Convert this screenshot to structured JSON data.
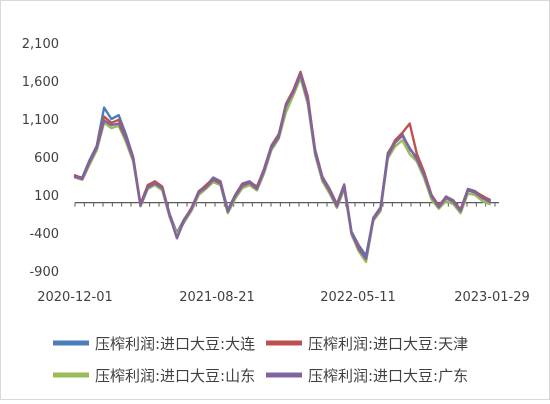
{
  "chart_data": {
    "type": "line",
    "title": "",
    "xlabel": "",
    "ylabel": "",
    "ylim": [
      -900,
      2100
    ],
    "y_ticks": [
      2100,
      1600,
      1100,
      600,
      100,
      -400,
      -900
    ],
    "y_tick_labels": [
      "2,100",
      "1,600",
      "1,100",
      "600",
      "100",
      "-400",
      "-900"
    ],
    "x_tick_labels": [
      "2020-12-01",
      "2021-08-21",
      "2022-05-11",
      "2023-01-29"
    ],
    "x_range": [
      "2020-12-01",
      "2023-01-29"
    ],
    "grid": false,
    "zero_line": true,
    "legend_position": "bottom",
    "x": [
      "2020-12-01",
      "2020-12-15",
      "2020-12-29",
      "2021-01-12",
      "2021-01-26",
      "2021-02-09",
      "2021-02-23",
      "2021-03-09",
      "2021-03-23",
      "2021-04-06",
      "2021-04-20",
      "2021-05-04",
      "2021-05-18",
      "2021-06-01",
      "2021-06-15",
      "2021-06-29",
      "2021-07-13",
      "2021-07-27",
      "2021-08-10",
      "2021-08-24",
      "2021-09-07",
      "2021-09-21",
      "2021-10-05",
      "2021-10-19",
      "2021-11-02",
      "2021-11-16",
      "2021-11-30",
      "2021-12-14",
      "2021-12-28",
      "2022-01-11",
      "2022-01-25",
      "2022-02-08",
      "2022-02-22",
      "2022-03-08",
      "2022-03-22",
      "2022-04-05",
      "2022-04-19",
      "2022-05-03",
      "2022-05-17",
      "2022-05-31",
      "2022-06-14",
      "2022-06-28",
      "2022-07-12",
      "2022-07-26",
      "2022-08-09",
      "2022-08-23",
      "2022-09-06",
      "2022-09-20",
      "2022-10-04",
      "2022-10-18",
      "2022-11-01",
      "2022-11-15",
      "2022-11-29",
      "2022-12-13",
      "2022-12-27",
      "2023-01-10",
      "2023-01-24",
      "2023-02-07"
    ],
    "series": [
      {
        "name": "压榨利润:进口大豆:大连",
        "color": "#4a7ebb",
        "values": [
          350,
          330,
          560,
          750,
          1250,
          1100,
          1150,
          900,
          600,
          -30,
          220,
          270,
          200,
          -150,
          -400,
          -220,
          -80,
          150,
          220,
          330,
          280,
          -100,
          100,
          250,
          280,
          200,
          450,
          750,
          900,
          1250,
          1470,
          1700,
          1350,
          700,
          340,
          180,
          -20,
          240,
          -380,
          -560,
          -700,
          -200,
          -60,
          650,
          800,
          900,
          700,
          600,
          380,
          100,
          -50,
          80,
          30,
          -100,
          180,
          150,
          80,
          40
        ]
      },
      {
        "name": "压榨利润:进口大豆:天津",
        "color": "#c0504d",
        "values": [
          360,
          320,
          540,
          740,
          1130,
          1050,
          1090,
          860,
          590,
          -20,
          230,
          280,
          210,
          -160,
          -420,
          -230,
          -70,
          140,
          230,
          310,
          270,
          -110,
          90,
          240,
          270,
          210,
          440,
          740,
          890,
          1300,
          1480,
          1720,
          1400,
          680,
          330,
          170,
          -30,
          230,
          -400,
          -580,
          -760,
          -210,
          -70,
          630,
          820,
          920,
          1040,
          640,
          400,
          100,
          -40,
          70,
          20,
          -90,
          170,
          140,
          90,
          30
        ]
      },
      {
        "name": "压榨利润:进口大豆:山东",
        "color": "#9bbb59",
        "values": [
          330,
          300,
          500,
          690,
          1050,
          980,
          1010,
          800,
          540,
          -50,
          180,
          230,
          160,
          -190,
          -420,
          -260,
          -110,
          100,
          180,
          270,
          230,
          -140,
          50,
          190,
          230,
          160,
          390,
          690,
          840,
          1190,
          1410,
          1640,
          1300,
          630,
          280,
          120,
          -70,
          180,
          -420,
          -640,
          -780,
          -240,
          -110,
          580,
          740,
          820,
          640,
          540,
          320,
          40,
          -80,
          20,
          -20,
          -140,
          120,
          100,
          20,
          -20
        ]
      },
      {
        "name": "压榨利润:进口大豆:广东",
        "color": "#8064a2",
        "values": [
          340,
          310,
          530,
          720,
          1080,
          1020,
          1040,
          840,
          570,
          -40,
          200,
          250,
          190,
          -170,
          -470,
          -240,
          -90,
          130,
          200,
          300,
          250,
          -120,
          80,
          220,
          260,
          180,
          420,
          720,
          860,
          1280,
          1450,
          1690,
          1330,
          660,
          310,
          150,
          -50,
          210,
          -400,
          -610,
          -740,
          -220,
          -80,
          610,
          790,
          880,
          720,
          570,
          360,
          80,
          -60,
          60,
          10,
          -110,
          160,
          130,
          60,
          10
        ]
      }
    ]
  }
}
